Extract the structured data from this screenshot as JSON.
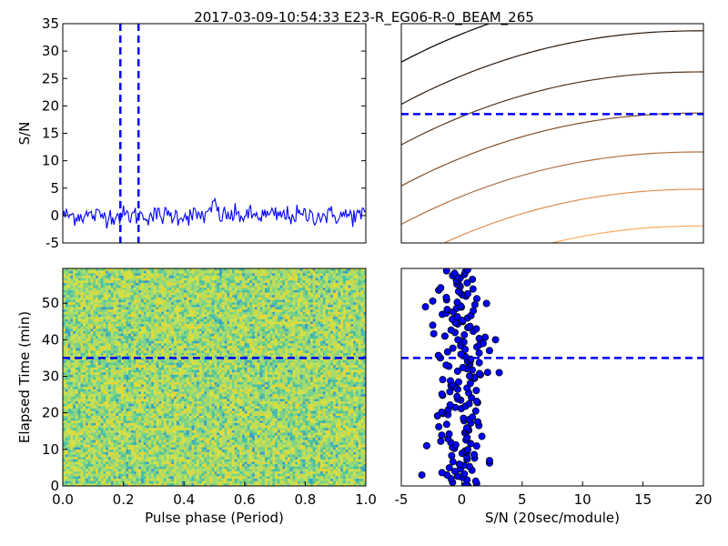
{
  "figure": {
    "title": "2017-03-09-10:54:33 E23-R_EG06-R-0_BEAM_265"
  },
  "chart_data": [
    {
      "panel": "profile",
      "type": "line",
      "ylabel": "S/N",
      "xlim": [
        0,
        1
      ],
      "ylim": [
        -5,
        35
      ],
      "yticks": [
        -5,
        0,
        5,
        10,
        15,
        20,
        25,
        30,
        35
      ],
      "series": [
        {
          "color": "#0000ff",
          "n_points": 256,
          "mean": 0.0,
          "noise_std": 0.9,
          "peak": {
            "x": 0.5,
            "y": 3.0
          }
        }
      ],
      "vlines": [
        0.19,
        0.25
      ],
      "line_color": "#0000ff"
    },
    {
      "panel": "snr-curves",
      "type": "line",
      "xlim": [
        -5,
        20
      ],
      "ylim": [
        -5,
        35
      ],
      "hline": 18.5,
      "curve_colors": [
        "#000000",
        "#2a1a0e",
        "#55361d",
        "#80512b",
        "#b07041",
        "#e08e52",
        "#ffa85c",
        "#ffc07a"
      ],
      "curve_starts": [
        28,
        20.3,
        12.9,
        5.4,
        -1.6,
        -8.9,
        -16.1,
        -23.3
      ],
      "curve_ends": [
        41.2,
        33.7,
        26.2,
        18.7,
        11.6,
        4.8,
        -1.9,
        -8.6
      ]
    },
    {
      "panel": "waterfall",
      "type": "heatmap",
      "xlabel": "Pulse phase (Period)",
      "ylabel": "Elapsed Time (min)",
      "xlim": [
        0,
        1
      ],
      "ylim": [
        0,
        59.5
      ],
      "xticks": [
        "0.0",
        "0.2",
        "0.4",
        "0.6",
        "0.8",
        "1.0"
      ],
      "yticks": [
        0,
        10,
        20,
        30,
        40,
        50
      ],
      "hline": 35,
      "colormap": [
        "#3b9cc9",
        "#46c0a6",
        "#7ad18a",
        "#a9dc6a",
        "#d5e045",
        "#e8d631"
      ]
    },
    {
      "panel": "scatter",
      "type": "scatter",
      "xlabel": "S/N (20sec/module)",
      "xlim": [
        -5,
        20
      ],
      "ylim": [
        0,
        59.5
      ],
      "xticks": [
        -5,
        0,
        5,
        10,
        15,
        20
      ],
      "hline": 35,
      "point_color": "#0000ff",
      "n_points": 180,
      "x_mean": 0.0,
      "x_std": 1.1,
      "outliers": [
        {
          "x": 2.8,
          "y": 40
        },
        {
          "x": 3.1,
          "y": 31
        },
        {
          "x": -3.3,
          "y": 3
        },
        {
          "x": -2.9,
          "y": 11
        },
        {
          "x": -3.0,
          "y": 49
        }
      ]
    }
  ]
}
